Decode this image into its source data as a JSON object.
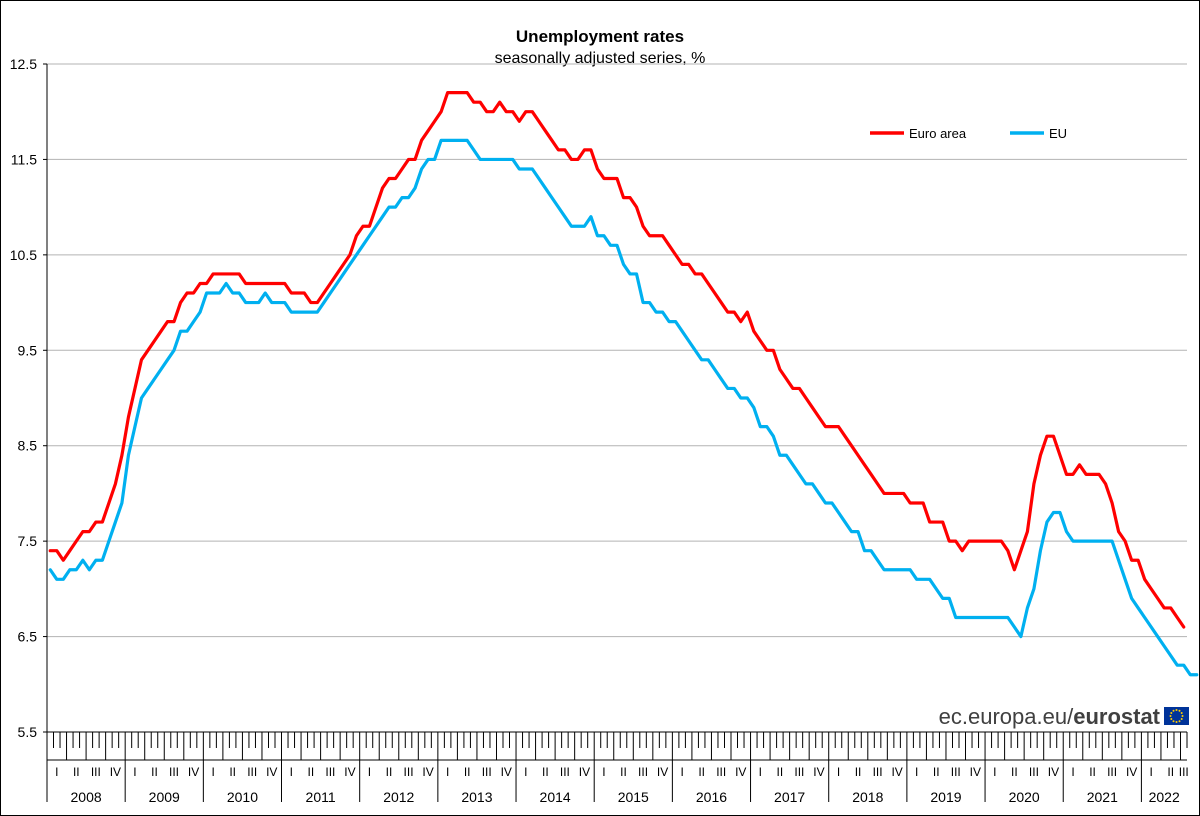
{
  "chart_data": {
    "type": "line",
    "title": "Unemployment rates",
    "subtitle": "seasonally adjusted series, %",
    "ylim": [
      5.5,
      12.5
    ],
    "yticks": [
      5.5,
      6.5,
      7.5,
      8.5,
      9.5,
      10.5,
      11.5,
      12.5
    ],
    "ytick_labels": [
      "5.5",
      "6.5",
      "7.5",
      "8.5",
      "9.5",
      "10.5",
      "11.5",
      "12.5"
    ],
    "grid": true,
    "legend_position": "top-right",
    "x_start": "2008-01",
    "x_end": "2022-06",
    "years": [
      "2008",
      "2009",
      "2010",
      "2011",
      "2012",
      "2013",
      "2014",
      "2015",
      "2016",
      "2017",
      "2018",
      "2019",
      "2020",
      "2021",
      "2022"
    ],
    "quarters": [
      "I",
      "II",
      "III",
      "IV"
    ],
    "series": [
      {
        "name": "Euro area",
        "color": "#ff0000",
        "values": [
          7.4,
          7.4,
          7.3,
          7.4,
          7.5,
          7.6,
          7.6,
          7.7,
          7.7,
          7.9,
          8.1,
          8.4,
          8.8,
          9.1,
          9.4,
          9.5,
          9.6,
          9.7,
          9.8,
          9.8,
          10.0,
          10.1,
          10.1,
          10.2,
          10.2,
          10.3,
          10.3,
          10.3,
          10.3,
          10.3,
          10.2,
          10.2,
          10.2,
          10.2,
          10.2,
          10.2,
          10.2,
          10.1,
          10.1,
          10.1,
          10.0,
          10.0,
          10.1,
          10.2,
          10.3,
          10.4,
          10.5,
          10.7,
          10.8,
          10.8,
          11.0,
          11.2,
          11.3,
          11.3,
          11.4,
          11.5,
          11.5,
          11.7,
          11.8,
          11.9,
          12.0,
          12.2,
          12.2,
          12.2,
          12.2,
          12.1,
          12.1,
          12.0,
          12.0,
          12.1,
          12.0,
          12.0,
          11.9,
          12.0,
          12.0,
          11.9,
          11.8,
          11.7,
          11.6,
          11.6,
          11.5,
          11.5,
          11.6,
          11.6,
          11.4,
          11.3,
          11.3,
          11.3,
          11.1,
          11.1,
          11.0,
          10.8,
          10.7,
          10.7,
          10.7,
          10.6,
          10.5,
          10.4,
          10.4,
          10.3,
          10.3,
          10.2,
          10.1,
          10.0,
          9.9,
          9.9,
          9.8,
          9.9,
          9.7,
          9.6,
          9.5,
          9.5,
          9.3,
          9.2,
          9.1,
          9.1,
          9.0,
          8.9,
          8.8,
          8.7,
          8.7,
          8.7,
          8.6,
          8.5,
          8.4,
          8.3,
          8.2,
          8.1,
          8.0,
          8.0,
          8.0,
          8.0,
          7.9,
          7.9,
          7.9,
          7.7,
          7.7,
          7.7,
          7.5,
          7.5,
          7.4,
          7.5,
          7.5,
          7.5,
          7.5,
          7.5,
          7.5,
          7.4,
          7.2,
          7.4,
          7.6,
          8.1,
          8.4,
          8.6,
          8.6,
          8.4,
          8.2,
          8.2,
          8.3,
          8.2,
          8.2,
          8.2,
          8.1,
          7.9,
          7.6,
          7.5,
          7.3,
          7.3,
          7.1,
          7.0,
          6.9,
          6.8,
          6.8,
          6.7,
          6.6
        ]
      },
      {
        "name": "EU",
        "color": "#00b0f0",
        "values": [
          7.2,
          7.1,
          7.1,
          7.2,
          7.2,
          7.3,
          7.2,
          7.3,
          7.3,
          7.5,
          7.7,
          7.9,
          8.4,
          8.7,
          9.0,
          9.1,
          9.2,
          9.3,
          9.4,
          9.5,
          9.7,
          9.7,
          9.8,
          9.9,
          10.1,
          10.1,
          10.1,
          10.2,
          10.1,
          10.1,
          10.0,
          10.0,
          10.0,
          10.1,
          10.0,
          10.0,
          10.0,
          9.9,
          9.9,
          9.9,
          9.9,
          9.9,
          10.0,
          10.1,
          10.2,
          10.3,
          10.4,
          10.5,
          10.6,
          10.7,
          10.8,
          10.9,
          11.0,
          11.0,
          11.1,
          11.1,
          11.2,
          11.4,
          11.5,
          11.5,
          11.7,
          11.7,
          11.7,
          11.7,
          11.7,
          11.6,
          11.5,
          11.5,
          11.5,
          11.5,
          11.5,
          11.5,
          11.4,
          11.4,
          11.4,
          11.3,
          11.2,
          11.1,
          11.0,
          10.9,
          10.8,
          10.8,
          10.8,
          10.9,
          10.7,
          10.7,
          10.6,
          10.6,
          10.4,
          10.3,
          10.3,
          10.0,
          10.0,
          9.9,
          9.9,
          9.8,
          9.8,
          9.7,
          9.6,
          9.5,
          9.4,
          9.4,
          9.3,
          9.2,
          9.1,
          9.1,
          9.0,
          9.0,
          8.9,
          8.7,
          8.7,
          8.6,
          8.4,
          8.4,
          8.3,
          8.2,
          8.1,
          8.1,
          8.0,
          7.9,
          7.9,
          7.8,
          7.7,
          7.6,
          7.6,
          7.4,
          7.4,
          7.3,
          7.2,
          7.2,
          7.2,
          7.2,
          7.2,
          7.1,
          7.1,
          7.1,
          7.0,
          6.9,
          6.9,
          6.7,
          6.7,
          6.7,
          6.7,
          6.7,
          6.7,
          6.7,
          6.7,
          6.7,
          6.6,
          6.5,
          6.8,
          7.0,
          7.4,
          7.7,
          7.8,
          7.8,
          7.6,
          7.5,
          7.5,
          7.5,
          7.5,
          7.5,
          7.5,
          7.5,
          7.3,
          7.1,
          6.9,
          6.8,
          6.7,
          6.6,
          6.5,
          6.4,
          6.3,
          6.2,
          6.2,
          6.1,
          6.1
        ]
      }
    ]
  },
  "footer": {
    "source_prefix": "ec.europa.eu/",
    "source_brand": "eurostat",
    "logo_icon": "eu-flag-icon"
  }
}
